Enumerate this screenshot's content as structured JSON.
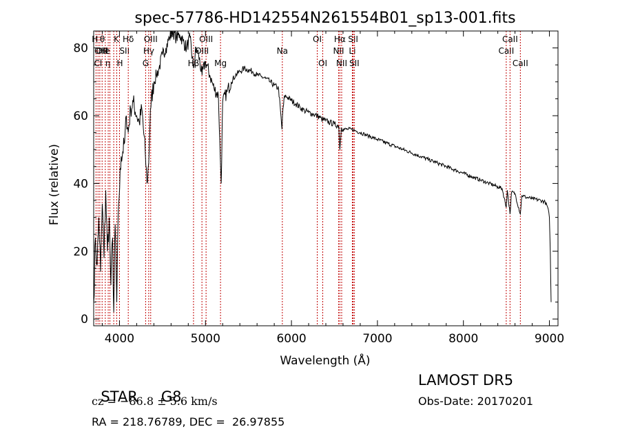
{
  "chart_data": {
    "type": "line",
    "title": "spec-57786-HD142554N261554B01_sp13-001.fits",
    "xlabel": "Wavelength (Å)",
    "ylabel": "Flux (relative)",
    "xlim": [
      3700,
      9100
    ],
    "ylim": [
      -2,
      85
    ],
    "xticks": [
      4000,
      5000,
      6000,
      7000,
      8000,
      9000
    ],
    "yticks": [
      0,
      20,
      40,
      60,
      80
    ],
    "grid": false,
    "series": [
      {
        "color": "#000000",
        "points": [
          [
            3700,
            5
          ],
          [
            3720,
            24
          ],
          [
            3740,
            16
          ],
          [
            3760,
            30
          ],
          [
            3780,
            14
          ],
          [
            3800,
            34
          ],
          [
            3820,
            18
          ],
          [
            3840,
            38
          ],
          [
            3860,
            20
          ],
          [
            3880,
            30
          ],
          [
            3900,
            10
          ],
          [
            3920,
            24
          ],
          [
            3933,
            2
          ],
          [
            3950,
            28
          ],
          [
            3968,
            5
          ],
          [
            3990,
            34
          ],
          [
            4020,
            48
          ],
          [
            4060,
            52
          ],
          [
            4080,
            60
          ],
          [
            4101,
            55
          ],
          [
            4130,
            62
          ],
          [
            4160,
            64
          ],
          [
            4200,
            60
          ],
          [
            4230,
            58
          ],
          [
            4260,
            62
          ],
          [
            4300,
            49
          ],
          [
            4320,
            40
          ],
          [
            4340,
            46
          ],
          [
            4360,
            62
          ],
          [
            4400,
            70
          ],
          [
            4430,
            72
          ],
          [
            4460,
            74
          ],
          [
            4500,
            78
          ],
          [
            4540,
            80
          ],
          [
            4580,
            83
          ],
          [
            4620,
            85
          ],
          [
            4660,
            83
          ],
          [
            4700,
            84
          ],
          [
            4740,
            82
          ],
          [
            4780,
            80
          ],
          [
            4820,
            83
          ],
          [
            4861,
            74
          ],
          [
            4890,
            80
          ],
          [
            4920,
            78
          ],
          [
            4960,
            72
          ],
          [
            5000,
            76
          ],
          [
            5050,
            72
          ],
          [
            5100,
            68
          ],
          [
            5150,
            66
          ],
          [
            5172,
            48
          ],
          [
            5183,
            40
          ],
          [
            5200,
            64
          ],
          [
            5250,
            67
          ],
          [
            5300,
            70
          ],
          [
            5350,
            72
          ],
          [
            5400,
            73
          ],
          [
            5450,
            74
          ],
          [
            5500,
            73.5
          ],
          [
            5550,
            73
          ],
          [
            5600,
            72
          ],
          [
            5650,
            71.5
          ],
          [
            5700,
            71
          ],
          [
            5750,
            70
          ],
          [
            5800,
            69
          ],
          [
            5850,
            68
          ],
          [
            5890,
            56
          ],
          [
            5896,
            60
          ],
          [
            5920,
            66
          ],
          [
            5950,
            65.5
          ],
          [
            6000,
            64.5
          ],
          [
            6050,
            63.5
          ],
          [
            6100,
            62.5
          ],
          [
            6150,
            61.5
          ],
          [
            6200,
            61
          ],
          [
            6250,
            60.5
          ],
          [
            6300,
            60
          ],
          [
            6350,
            59
          ],
          [
            6400,
            58.5
          ],
          [
            6450,
            58
          ],
          [
            6500,
            57.5
          ],
          [
            6550,
            57
          ],
          [
            6563,
            50
          ],
          [
            6580,
            56.5
          ],
          [
            6600,
            56
          ],
          [
            6650,
            56
          ],
          [
            6700,
            56
          ],
          [
            6750,
            55.5
          ],
          [
            6800,
            55
          ],
          [
            6850,
            54.5
          ],
          [
            6900,
            54
          ],
          [
            6950,
            53.5
          ],
          [
            7000,
            53
          ],
          [
            7100,
            52
          ],
          [
            7200,
            51
          ],
          [
            7300,
            50
          ],
          [
            7400,
            49
          ],
          [
            7500,
            48
          ],
          [
            7600,
            47
          ],
          [
            7700,
            46
          ],
          [
            7800,
            45
          ],
          [
            7900,
            44
          ],
          [
            8000,
            43
          ],
          [
            8100,
            42
          ],
          [
            8200,
            41
          ],
          [
            8300,
            40
          ],
          [
            8400,
            39
          ],
          [
            8450,
            38.5
          ],
          [
            8498,
            33
          ],
          [
            8510,
            38
          ],
          [
            8542,
            31
          ],
          [
            8560,
            37.5
          ],
          [
            8600,
            37
          ],
          [
            8662,
            31
          ],
          [
            8680,
            36.5
          ],
          [
            8720,
            36
          ],
          [
            8800,
            35.5
          ],
          [
            8900,
            35
          ],
          [
            8950,
            34.5
          ],
          [
            8980,
            33
          ],
          [
            9000,
            30
          ],
          [
            9010,
            20
          ],
          [
            9020,
            5
          ]
        ]
      }
    ],
    "lines": [
      {
        "wl": 3727,
        "label": "OII",
        "row": 1,
        "side": "r"
      },
      {
        "wl": 3750,
        "label": "H",
        "row": 0,
        "side": "l"
      },
      {
        "wl": 3771,
        "label": "θ",
        "row": 0,
        "side": "r"
      },
      {
        "wl": 3798,
        "label": "Cl",
        "row": 2,
        "side": "l"
      },
      {
        "wl": 3835,
        "label": "η",
        "row": 2,
        "side": "r"
      },
      {
        "wl": 3869,
        "label": "OIII",
        "row": 1,
        "side": "l"
      },
      {
        "wl": 3889,
        "label": "He",
        "row": 1,
        "side": "l"
      },
      {
        "wl": 3933,
        "label": "K",
        "row": 0,
        "side": "r"
      },
      {
        "wl": 3968,
        "label": "H",
        "row": 2,
        "side": "r"
      },
      {
        "wl": 4000,
        "label": "SII",
        "row": 1,
        "side": "r"
      },
      {
        "wl": 4102,
        "label": "Hδ",
        "row": 0,
        "side": "c"
      },
      {
        "wl": 4304,
        "label": "G",
        "row": 2,
        "side": "c"
      },
      {
        "wl": 4340,
        "label": "Hγ",
        "row": 1,
        "side": "c"
      },
      {
        "wl": 4363,
        "label": "OIII",
        "row": 0,
        "side": "c"
      },
      {
        "wl": 4861,
        "label": "Hβ",
        "row": 2,
        "side": "c"
      },
      {
        "wl": 4959,
        "label": "OIII",
        "row": 1,
        "side": "c"
      },
      {
        "wl": 5007,
        "label": "OIII",
        "row": 0,
        "side": "c"
      },
      {
        "wl": 5175,
        "label": "Mg",
        "row": 2,
        "side": "c"
      },
      {
        "wl": 5894,
        "label": "Na",
        "row": 1,
        "side": "c"
      },
      {
        "wl": 6300,
        "label": "OI",
        "row": 0,
        "side": "c"
      },
      {
        "wl": 6364,
        "label": "OI",
        "row": 2,
        "side": "c"
      },
      {
        "wl": 6548,
        "label": "NII",
        "row": 1,
        "side": "c"
      },
      {
        "wl": 6563,
        "label": "Hα",
        "row": 0,
        "side": "c"
      },
      {
        "wl": 6584,
        "label": "NII",
        "row": 2,
        "side": "c"
      },
      {
        "wl": 6708,
        "label": "Li",
        "row": 1,
        "side": "c"
      },
      {
        "wl": 6717,
        "label": "SII",
        "row": 0,
        "side": "c"
      },
      {
        "wl": 6731,
        "label": "SII",
        "row": 2,
        "side": "c"
      },
      {
        "wl": 8498,
        "label": "CaII",
        "row": 1,
        "side": "c"
      },
      {
        "wl": 8542,
        "label": "CaII",
        "row": 0,
        "side": "c"
      },
      {
        "wl": 8662,
        "label": "CaII",
        "row": 2,
        "side": "c"
      }
    ]
  },
  "info": {
    "object_class": "STAR",
    "subclass": "G8",
    "survey": "LAMOST DR5",
    "redshift_line": "cz = −86.8 ± 5.6 km/s",
    "obs_date": "Obs-Date: 20170201",
    "coords": "RA = 218.76789, DEC =  26.97855"
  }
}
